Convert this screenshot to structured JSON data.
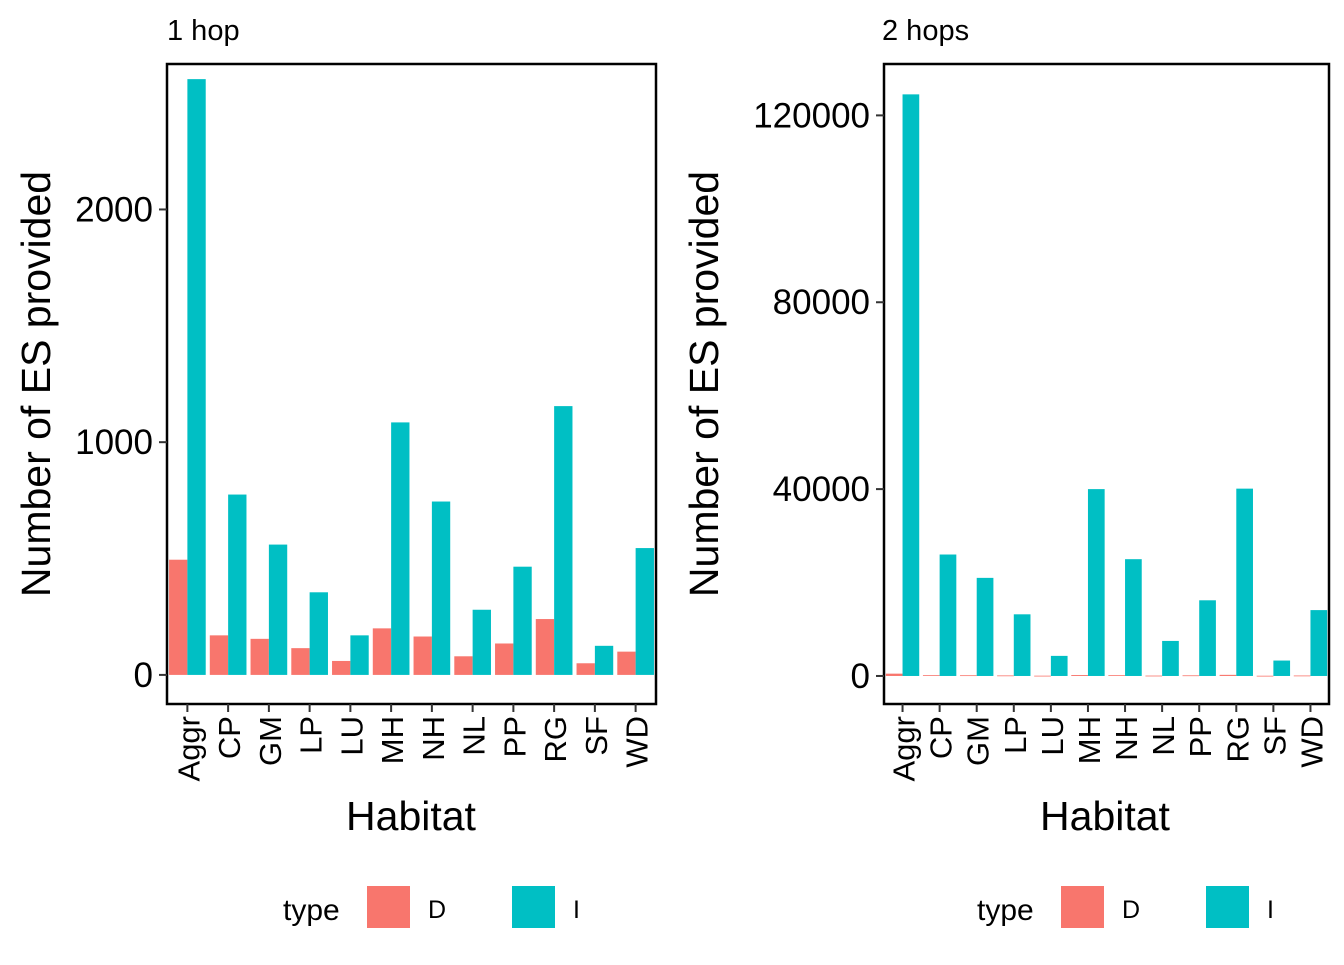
{
  "chart_data": [
    {
      "type": "bar",
      "title": "1 hop",
      "xlabel": "Habitat",
      "ylabel": "Number of ES provided",
      "ylim": [
        -125,
        2625
      ],
      "yticks": [
        0,
        1000,
        2000
      ],
      "ytick_labels": [
        "0",
        "1000",
        "2000"
      ],
      "grid": false,
      "legend_position": "bottom",
      "legend_title": "type",
      "categories": [
        "Aggr",
        "CP",
        "GM",
        "LP",
        "LU",
        "MH",
        "NH",
        "NL",
        "PP",
        "RG",
        "SF",
        "WD"
      ],
      "series": [
        {
          "name": "D",
          "color": "#F8766D",
          "values": [
            495,
            170,
            155,
            115,
            60,
            200,
            165,
            80,
            135,
            240,
            50,
            100
          ]
        },
        {
          "name": "I",
          "color": "#00BFC4",
          "values": [
            2560,
            775,
            560,
            355,
            170,
            1085,
            745,
            280,
            465,
            1155,
            125,
            545
          ]
        }
      ]
    },
    {
      "type": "bar",
      "title": "2 hops",
      "xlabel": "Habitat",
      "ylabel": "Number of ES provided",
      "ylim": [
        -6000,
        131000
      ],
      "yticks": [
        0,
        40000,
        80000,
        120000
      ],
      "ytick_labels": [
        "0",
        "40000",
        "80000",
        "120000"
      ],
      "grid": false,
      "legend_position": "bottom",
      "legend_title": "type",
      "categories": [
        "Aggr",
        "CP",
        "GM",
        "LP",
        "LU",
        "MH",
        "NH",
        "NL",
        "PP",
        "RG",
        "SF",
        "WD"
      ],
      "series": [
        {
          "name": "D",
          "color": "#F8766D",
          "values": [
            495,
            170,
            155,
            115,
            60,
            200,
            165,
            80,
            135,
            240,
            50,
            100
          ]
        },
        {
          "name": "I",
          "color": "#00BFC4",
          "values": [
            124500,
            26000,
            21000,
            13200,
            4300,
            40000,
            25000,
            7500,
            16200,
            40100,
            3300,
            14100
          ]
        }
      ]
    }
  ]
}
